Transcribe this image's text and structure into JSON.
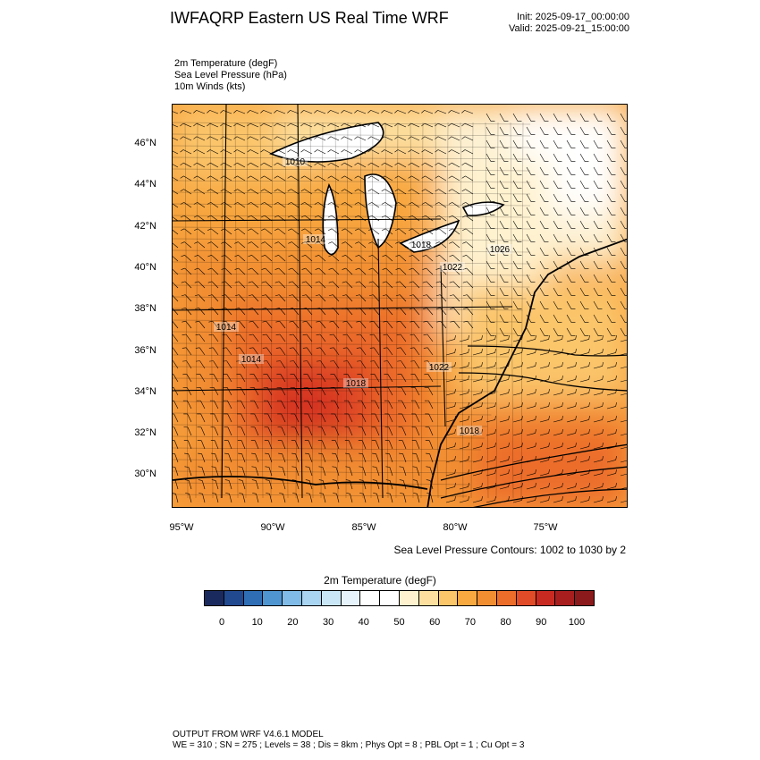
{
  "header": {
    "title": "IWFAQRP Eastern US Real Time WRF",
    "init": "Init: 2025-09-17_00:00:00",
    "valid": "Valid: 2025-09-21_15:00:00"
  },
  "fields": [
    "2m Temperature   (degF)",
    "Sea Level Pressure   (hPa)",
    "10m Winds   (kts)"
  ],
  "map": {
    "lat_labels": [
      "46°N",
      "44°N",
      "42°N",
      "40°N",
      "38°N",
      "36°N",
      "34°N",
      "32°N",
      "30°N"
    ],
    "lon_labels": [
      "95°W",
      "90°W",
      "85°W",
      "80°W",
      "75°W"
    ],
    "pressure_labels": [
      "1010",
      "1014",
      "1018",
      "1022",
      "1026",
      "1014",
      "1014",
      "1018",
      "1022",
      "1018"
    ],
    "colors": {
      "warm_light": "#fbd38a",
      "warm_mid": "#f7a23d",
      "warm_orange": "#f0842a",
      "hot_red": "#e44d26",
      "hot_dark": "#d63420",
      "cool_white": "#ffffff",
      "cool_cream": "#fdf1d4"
    }
  },
  "contour_note": "Sea Level Pressure Contours: 1002 to 1030 by 2",
  "colorbar": {
    "title": "2m Temperature  (degF)",
    "ticks": [
      "0",
      "10",
      "20",
      "30",
      "40",
      "50",
      "60",
      "70",
      "80",
      "90",
      "100"
    ],
    "colors": [
      "#1b2a5e",
      "#21498f",
      "#2f6eb5",
      "#4f95cf",
      "#7fbbe6",
      "#a9d5f2",
      "#c9e6f6",
      "#e6f3fa",
      "#ffffff",
      "#ffffff",
      "#fff2cf",
      "#fde0a0",
      "#fbc56a",
      "#f8a940",
      "#f28e32",
      "#ec6d2a",
      "#e14b27",
      "#c82a22",
      "#a81e1f",
      "#8a1a1b"
    ]
  },
  "footer": {
    "line1": "OUTPUT FROM WRF V4.6.1 MODEL",
    "line2": "WE = 310 ; SN = 275 ; Levels = 38 ; Dis = 8km ; Phys Opt = 8 ; PBL Opt = 1 ; Cu Opt = 3"
  }
}
